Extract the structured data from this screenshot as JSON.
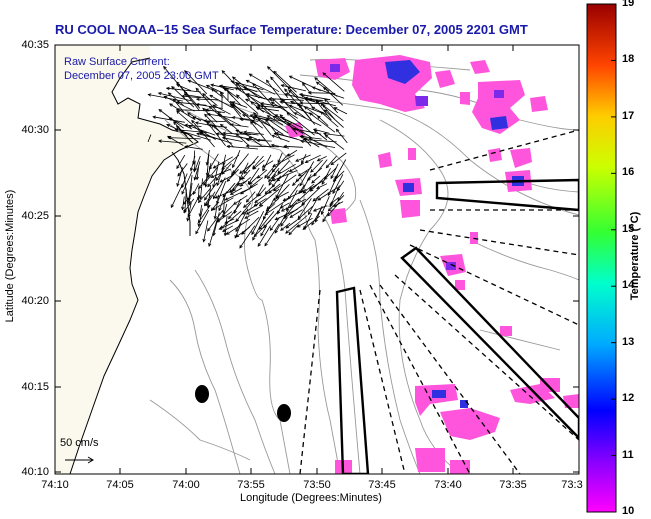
{
  "title": "RU COOL  NOAA–15  Sea Surface Temperature:  December 07, 2005 2201 GMT",
  "annotation": {
    "raw_surface_line1": "Raw Surface Current:",
    "raw_surface_line2": "December 07, 2005 23:00 GMT"
  },
  "scale_label": "50 cm/s",
  "axes": {
    "xlabel": "Longitude (Degrees:Minutes)",
    "ylabel": "Latitude (Degrees:Minutes)",
    "x_ticks": [
      "74:10",
      "74:05",
      "74:00",
      "73:55",
      "73:50",
      "73:45",
      "73:40",
      "73:35",
      "73:3"
    ],
    "y_ticks": [
      "40:35",
      "40:30",
      "40:25",
      "40:20",
      "40:15",
      "40:10"
    ]
  },
  "colorbar": {
    "label": "Temperature (°C)",
    "ticks": [
      "19",
      "18",
      "17",
      "16",
      "15",
      "14",
      "13",
      "12",
      "11",
      "10"
    ],
    "min": 10,
    "max": 19
  },
  "colors": {
    "title": "#1a1aa8",
    "sst_warm": "#ff55dd",
    "sst_cool": "#2828d8",
    "land": "#fbf9ee"
  }
}
